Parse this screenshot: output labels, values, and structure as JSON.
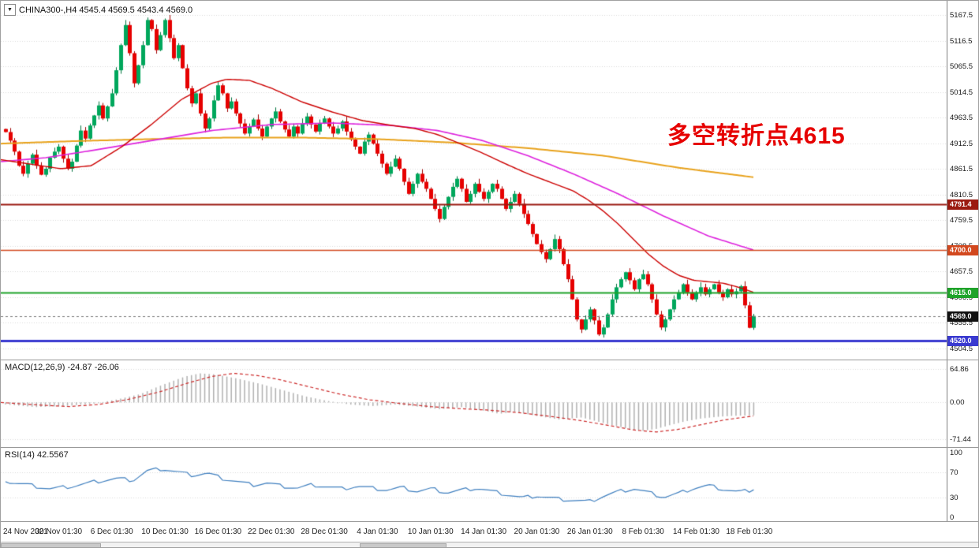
{
  "header": {
    "symbol_line": "CHINA300-,H4 4545.4 4569.5 4543.4 4569.0",
    "ohlc": {
      "open": 4545.4,
      "high": 4569.5,
      "low": 4543.4,
      "close": 4569.0
    },
    "timeframe": "H4",
    "symbol": "CHINA300-"
  },
  "annotation": {
    "text": "多空转折点4615",
    "color": "#e60000"
  },
  "colors": {
    "up": "#00a75c",
    "up_dark": "#00733e",
    "down": "#e60000",
    "down_dark": "#9e0000",
    "grid": "#d9d9d9",
    "macd_hist": "#b0b0b0",
    "macd_signal": "#cc2a2a",
    "rsi": "#3f7fbf",
    "current_badge": "#111111",
    "axis_border": "#808080"
  },
  "chart_data": {
    "type": "candlestick",
    "x_labels": [
      "24 Nov 2021",
      "30 Nov 01:30",
      "6 Dec 01:30",
      "10 Dec 01:30",
      "16 Dec 01:30",
      "22 Dec 01:30",
      "28 Dec 01:30",
      "4 Jan 01:30",
      "10 Jan 01:30",
      "14 Jan 01:30",
      "20 Jan 01:30",
      "26 Jan 01:30",
      "8 Feb 01:30",
      "14 Feb 01:30",
      "18 Feb 01:30"
    ],
    "candles_per_label": 12,
    "main": {
      "y_range": [
        4490,
        5190
      ],
      "y_ticks": [
        5167.5,
        5116.5,
        5065.5,
        5014.5,
        4963.5,
        4912.5,
        4861.5,
        4810.5,
        4759.5,
        4708.5,
        4657.5,
        4606.5,
        4555.5,
        4504.5
      ],
      "closes": [
        4935,
        4918,
        4896,
        4868,
        4852,
        4872,
        4890,
        4868,
        4850,
        4862,
        4884,
        4896,
        4906,
        4882,
        4862,
        4876,
        4908,
        4938,
        4922,
        4948,
        4968,
        4988,
        4962,
        4986,
        5012,
        5058,
        5108,
        5148,
        5092,
        5032,
        5068,
        5108,
        5158,
        5140,
        5098,
        5128,
        5158,
        5122,
        5082,
        5108,
        5062,
        5022,
        4992,
        5012,
        4972,
        4942,
        4962,
        4998,
        5028,
        5012,
        4982,
        4996,
        4972,
        4952,
        4932,
        4946,
        4960,
        4942,
        4926,
        4946,
        4962,
        4976,
        4956,
        4940,
        4926,
        4946,
        4932,
        4952,
        4966,
        4950,
        4936,
        4952,
        4962,
        4946,
        4932,
        4942,
        4956,
        4936,
        4920,
        4906,
        4892,
        4916,
        4930,
        4912,
        4892,
        4872,
        4852,
        4866,
        4882,
        4862,
        4836,
        4812,
        4832,
        4852,
        4836,
        4822,
        4802,
        4782,
        4762,
        4786,
        4806,
        4826,
        4842,
        4822,
        4796,
        4812,
        4832,
        4816,
        4802,
        4816,
        4832,
        4822,
        4802,
        4782,
        4796,
        4812,
        4792,
        4772,
        4752,
        4732,
        4712,
        4696,
        4682,
        4702,
        4722,
        4702,
        4672,
        4642,
        4602,
        4562,
        4542,
        4562,
        4582,
        4560,
        4532,
        4546,
        4572,
        4602,
        4626,
        4642,
        4656,
        4640,
        4622,
        4642,
        4652,
        4632,
        4602,
        4572,
        4546,
        4562,
        4582,
        4602,
        4616,
        4632,
        4616,
        4602,
        4616,
        4626,
        4612,
        4622,
        4632,
        4616,
        4606,
        4622,
        4612,
        4618,
        4628,
        4590,
        4545.4,
        4569.0
      ],
      "ma_lines": [
        {
          "name": "ma-slow-orange",
          "color": "#e8a21c",
          "width": 2,
          "points": [
            [
              0,
              4912
            ],
            [
              0.1,
              4917
            ],
            [
              0.2,
              4921
            ],
            [
              0.3,
              4924
            ],
            [
              0.4,
              4924
            ],
            [
              0.5,
              4921
            ],
            [
              0.6,
              4914
            ],
            [
              0.7,
              4903
            ],
            [
              0.8,
              4888
            ],
            [
              0.9,
              4864
            ],
            [
              1.0,
              4845
            ]
          ]
        },
        {
          "name": "ma-mid-magenta",
          "color": "#dd22dd",
          "width": 1.6,
          "points": [
            [
              0,
              4876
            ],
            [
              0.06,
              4884
            ],
            [
              0.12,
              4898
            ],
            [
              0.2,
              4918
            ],
            [
              0.28,
              4938
            ],
            [
              0.36,
              4950
            ],
            [
              0.44,
              4953
            ],
            [
              0.52,
              4948
            ],
            [
              0.58,
              4938
            ],
            [
              0.64,
              4918
            ],
            [
              0.7,
              4888
            ],
            [
              0.76,
              4852
            ],
            [
              0.82,
              4812
            ],
            [
              0.88,
              4768
            ],
            [
              0.94,
              4728
            ],
            [
              1.0,
              4700
            ]
          ]
        },
        {
          "name": "ma-fast-red",
          "color": "#cc0000",
          "width": 1.4,
          "points": [
            [
              0,
              4880
            ],
            [
              0.08,
              4862
            ],
            [
              0.12,
              4868
            ],
            [
              0.16,
              4905
            ],
            [
              0.2,
              4950
            ],
            [
              0.24,
              5000
            ],
            [
              0.28,
              5032
            ],
            [
              0.3,
              5040
            ],
            [
              0.33,
              5038
            ],
            [
              0.36,
              5022
            ],
            [
              0.4,
              4995
            ],
            [
              0.44,
              4975
            ],
            [
              0.48,
              4958
            ],
            [
              0.52,
              4948
            ],
            [
              0.55,
              4942
            ],
            [
              0.58,
              4930
            ],
            [
              0.61,
              4912
            ],
            [
              0.64,
              4893
            ],
            [
              0.67,
              4872
            ],
            [
              0.7,
              4852
            ],
            [
              0.73,
              4835
            ],
            [
              0.76,
              4818
            ],
            [
              0.78,
              4800
            ],
            [
              0.8,
              4778
            ],
            [
              0.82,
              4752
            ],
            [
              0.84,
              4722
            ],
            [
              0.86,
              4692
            ],
            [
              0.88,
              4668
            ],
            [
              0.9,
              4650
            ],
            [
              0.92,
              4640
            ],
            [
              0.94,
              4637
            ],
            [
              0.96,
              4634
            ],
            [
              0.98,
              4626
            ],
            [
              1.0,
              4616
            ]
          ]
        }
      ],
      "h_lines": [
        {
          "value": 4791.4,
          "label": "4791.4",
          "color": "#9b1a10",
          "width": 2
        },
        {
          "value": 4700.0,
          "label": "4700.0",
          "color": "#d2481e",
          "width": 1.5
        },
        {
          "value": 4615.0,
          "label": "4615.0",
          "color": "#1fa32a",
          "width": 2
        },
        {
          "value": 4520.0,
          "label": "4520.0",
          "color": "#3a3ad0",
          "width": 3
        }
      ],
      "current_price": {
        "value": 4569.0,
        "label": "4569.0"
      }
    },
    "macd": {
      "label": "MACD(12,26,9) -24.87 -26.06",
      "values": {
        "macd": -24.87,
        "signal": -26.06
      },
      "y_range": [
        -80,
        75
      ],
      "y_ticks": [
        {
          "v": 64.86,
          "label": "64.86"
        },
        {
          "v": 0,
          "label": "0.00"
        },
        {
          "v": -71.44,
          "label": "-71.44"
        }
      ],
      "hist": [
        [
          0,
          -4
        ],
        [
          0.04,
          -9
        ],
        [
          0.08,
          -7
        ],
        [
          0.12,
          -2
        ],
        [
          0.15,
          6
        ],
        [
          0.18,
          16
        ],
        [
          0.21,
          34
        ],
        [
          0.24,
          50
        ],
        [
          0.26,
          56
        ],
        [
          0.28,
          54
        ],
        [
          0.31,
          46
        ],
        [
          0.34,
          36
        ],
        [
          0.37,
          24
        ],
        [
          0.4,
          12
        ],
        [
          0.43,
          3
        ],
        [
          0.46,
          -4
        ],
        [
          0.49,
          -7
        ],
        [
          0.52,
          -4
        ],
        [
          0.55,
          -8
        ],
        [
          0.58,
          -13
        ],
        [
          0.61,
          -9
        ],
        [
          0.64,
          -16
        ],
        [
          0.66,
          -22
        ],
        [
          0.68,
          -18
        ],
        [
          0.71,
          -26
        ],
        [
          0.74,
          -33
        ],
        [
          0.77,
          -29
        ],
        [
          0.8,
          -40
        ],
        [
          0.83,
          -50
        ],
        [
          0.85,
          -55
        ],
        [
          0.87,
          -51
        ],
        [
          0.89,
          -43
        ],
        [
          0.91,
          -36
        ],
        [
          0.93,
          -31
        ],
        [
          0.95,
          -28
        ],
        [
          0.97,
          -26
        ],
        [
          1.0,
          -24.87
        ]
      ],
      "signal": [
        [
          0,
          0
        ],
        [
          0.05,
          -5
        ],
        [
          0.09,
          -8
        ],
        [
          0.13,
          -4
        ],
        [
          0.17,
          6
        ],
        [
          0.21,
          20
        ],
        [
          0.25,
          38
        ],
        [
          0.28,
          50
        ],
        [
          0.31,
          56
        ],
        [
          0.34,
          52
        ],
        [
          0.37,
          44
        ],
        [
          0.41,
          30
        ],
        [
          0.45,
          16
        ],
        [
          0.49,
          5
        ],
        [
          0.53,
          -2
        ],
        [
          0.57,
          -8
        ],
        [
          0.61,
          -12
        ],
        [
          0.65,
          -15
        ],
        [
          0.69,
          -20
        ],
        [
          0.73,
          -27
        ],
        [
          0.77,
          -35
        ],
        [
          0.81,
          -45
        ],
        [
          0.84,
          -53
        ],
        [
          0.87,
          -57
        ],
        [
          0.9,
          -52
        ],
        [
          0.93,
          -43
        ],
        [
          0.96,
          -34
        ],
        [
          1.0,
          -26.06
        ]
      ]
    },
    "rsi": {
      "label": "RSI(14) 42.5567",
      "value": 42.5567,
      "y_range": [
        0,
        100
      ],
      "y_ticks": [
        {
          "v": 100,
          "label": "100"
        },
        {
          "v": 70,
          "label": "70"
        },
        {
          "v": 30,
          "label": "30"
        },
        {
          "v": 0,
          "label": "0"
        }
      ],
      "levels": [
        70,
        30
      ],
      "points": [
        [
          0,
          55
        ],
        [
          0.03,
          50
        ],
        [
          0.06,
          44
        ],
        [
          0.09,
          48
        ],
        [
          0.12,
          55
        ],
        [
          0.15,
          60
        ],
        [
          0.17,
          57
        ],
        [
          0.19,
          72
        ],
        [
          0.21,
          75
        ],
        [
          0.23,
          70
        ],
        [
          0.25,
          65
        ],
        [
          0.27,
          68
        ],
        [
          0.29,
          60
        ],
        [
          0.31,
          55
        ],
        [
          0.33,
          50
        ],
        [
          0.35,
          53
        ],
        [
          0.37,
          48
        ],
        [
          0.39,
          45
        ],
        [
          0.41,
          50
        ],
        [
          0.43,
          47
        ],
        [
          0.45,
          44
        ],
        [
          0.47,
          48
        ],
        [
          0.49,
          45
        ],
        [
          0.51,
          42
        ],
        [
          0.53,
          46
        ],
        [
          0.55,
          40
        ],
        [
          0.57,
          44
        ],
        [
          0.59,
          38
        ],
        [
          0.61,
          42
        ],
        [
          0.63,
          45
        ],
        [
          0.65,
          40
        ],
        [
          0.67,
          35
        ],
        [
          0.69,
          30
        ],
        [
          0.71,
          33
        ],
        [
          0.74,
          28
        ],
        [
          0.78,
          24
        ],
        [
          0.8,
          33
        ],
        [
          0.82,
          40
        ],
        [
          0.84,
          44
        ],
        [
          0.86,
          38
        ],
        [
          0.88,
          31
        ],
        [
          0.9,
          37
        ],
        [
          0.92,
          45
        ],
        [
          0.94,
          49
        ],
        [
          0.96,
          43
        ],
        [
          0.98,
          39
        ],
        [
          1.0,
          42.56
        ]
      ]
    }
  }
}
